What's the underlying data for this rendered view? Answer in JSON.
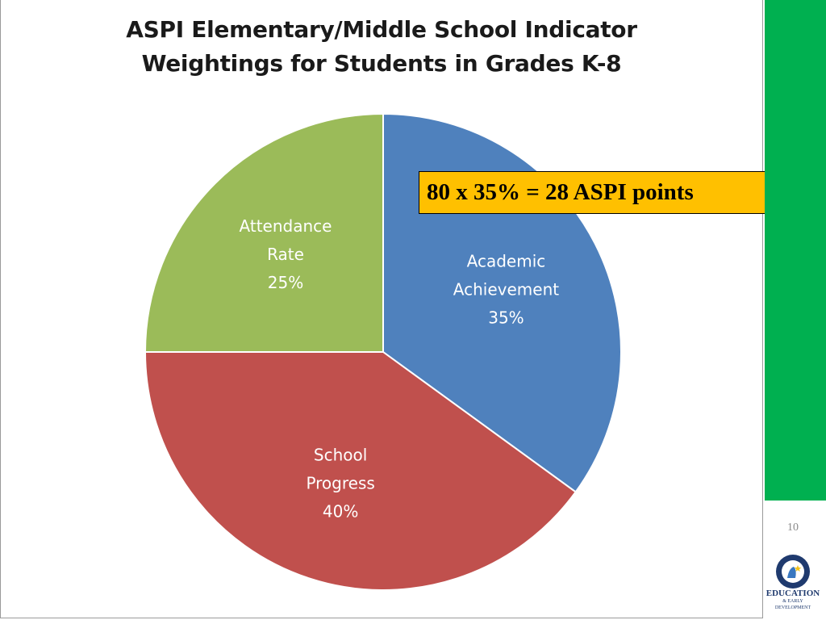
{
  "slide": {
    "page_number": "10",
    "callout_text": "80 x 35% = 28 ASPI points",
    "logo_text": {
      "line1": "EDUCATION",
      "line2": "& EARLY DEVELOPMENT"
    },
    "colors": {
      "sidebar": "#00b050",
      "callout_bg": "#ffc000"
    }
  },
  "chart_data": {
    "type": "pie",
    "title": "ASPI Elementary/Middle School Indicator Weightings for Students in Grades K-8",
    "title_lines": [
      "ASPI Elementary/Middle School Indicator",
      "Weightings for Students in Grades K-8"
    ],
    "slices": [
      {
        "label_lines": [
          "Academic",
          "Achievement"
        ],
        "value_label": "35%",
        "value": 35,
        "color": "#4f81bd"
      },
      {
        "label_lines": [
          "School",
          "Progress"
        ],
        "value_label": "40%",
        "value": 40,
        "color": "#c0504d"
      },
      {
        "label_lines": [
          "Attendance",
          "Rate"
        ],
        "value_label": "25%",
        "value": 25,
        "color": "#9bbb59"
      }
    ]
  }
}
